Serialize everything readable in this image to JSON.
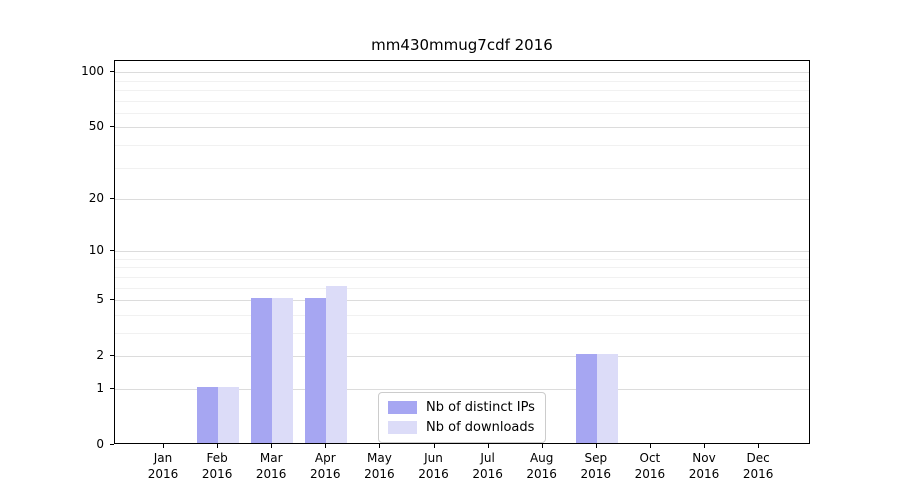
{
  "chart_data": {
    "type": "bar",
    "title": "mm430mmug7cdf 2016",
    "categories": [
      "Jan",
      "Feb",
      "Mar",
      "Apr",
      "May",
      "Jun",
      "Jul",
      "Aug",
      "Sep",
      "Oct",
      "Nov",
      "Dec"
    ],
    "category_year": "2016",
    "series": [
      {
        "name": "Nb of distinct IPs",
        "color": "#a6a6f2",
        "values": [
          0,
          1,
          5,
          5,
          0,
          0,
          0,
          0,
          2,
          0,
          0,
          0
        ]
      },
      {
        "name": "Nb of downloads",
        "color": "#dcdcf8",
        "values": [
          0,
          1,
          5,
          6,
          0,
          0,
          0,
          0,
          2,
          0,
          0,
          0
        ]
      }
    ],
    "xlabel": "",
    "ylabel": "",
    "y_scale": "log1p",
    "y_ticks": [
      0,
      1,
      2,
      5,
      10,
      20,
      50,
      100
    ],
    "y_minor_ticks": [
      3,
      4,
      6,
      7,
      8,
      9,
      30,
      40,
      60,
      70,
      80,
      90
    ],
    "ylim": [
      0,
      115
    ],
    "grid": "horizontal",
    "legend_position": "lower center (inside axes)",
    "colors": {
      "major_grid": "#dcdcdc",
      "minor_grid": "#f1f1f1",
      "axis": "#000000",
      "legend_border": "#cccccc"
    }
  }
}
